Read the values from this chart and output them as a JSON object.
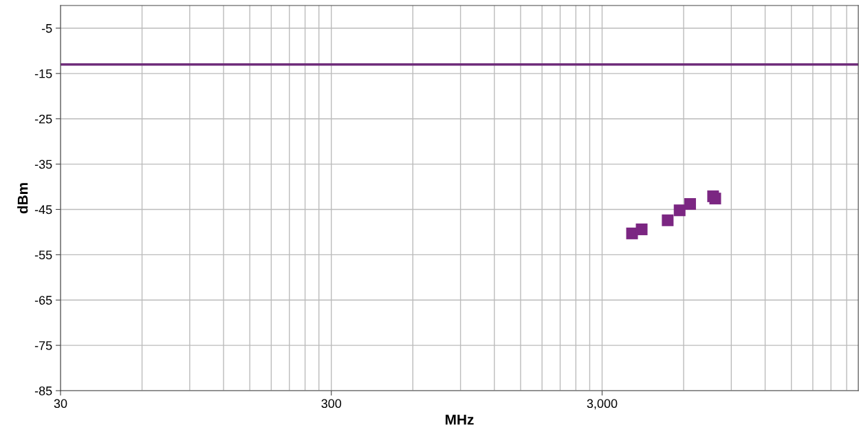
{
  "chart_data": {
    "type": "scatter",
    "xlabel": "MHz",
    "ylabel": "dBm",
    "log": "x",
    "x": [
      3870,
      4200,
      5240,
      5800,
      6340,
      7710,
      7850
    ],
    "series": [
      {
        "color": "#7b2682",
        "values": [
          -50.3,
          -49.4,
          -47.4,
          -45.2,
          -43.8,
          -42.1,
          -42.6
        ]
      }
    ],
    "marker": "square",
    "xlim": [
      30,
      26500
    ],
    "ylim": [
      -85,
      0
    ],
    "xticks": [
      30,
      {
        "value": 60,
        "label": null
      },
      {
        "value": 90,
        "label": null
      },
      {
        "value": 120,
        "label": null
      },
      {
        "value": 150,
        "label": null
      },
      {
        "value": 180,
        "label": null
      },
      {
        "value": 210,
        "label": null
      },
      {
        "value": 240,
        "label": null
      },
      {
        "value": 270,
        "label": null
      },
      300,
      {
        "value": 600,
        "label": null
      },
      {
        "value": 900,
        "label": null
      },
      {
        "value": 1200,
        "label": null
      },
      {
        "value": 1500,
        "label": null
      },
      {
        "value": 1800,
        "label": null
      },
      {
        "value": 2100,
        "label": null
      },
      {
        "value": 2400,
        "label": null
      },
      {
        "value": 2700,
        "label": null
      },
      {
        "value": 3000,
        "label": "3,000"
      },
      {
        "value": 6000,
        "label": null
      },
      {
        "value": 9000,
        "label": null
      },
      {
        "value": 12000,
        "label": null
      },
      {
        "value": 15000,
        "label": null
      },
      {
        "value": 18000,
        "label": null
      },
      {
        "value": 21000,
        "label": null
      },
      {
        "value": 24000,
        "label": null
      }
    ],
    "yticks": [
      -85,
      -75,
      -65,
      -55,
      -45,
      -35,
      -25,
      -15,
      -5
    ],
    "ref_lines": [
      {
        "axis": "y",
        "value": -13,
        "color": "#6f2c7a",
        "line_style": "solid"
      }
    ],
    "grid": true,
    "legend": false
  }
}
